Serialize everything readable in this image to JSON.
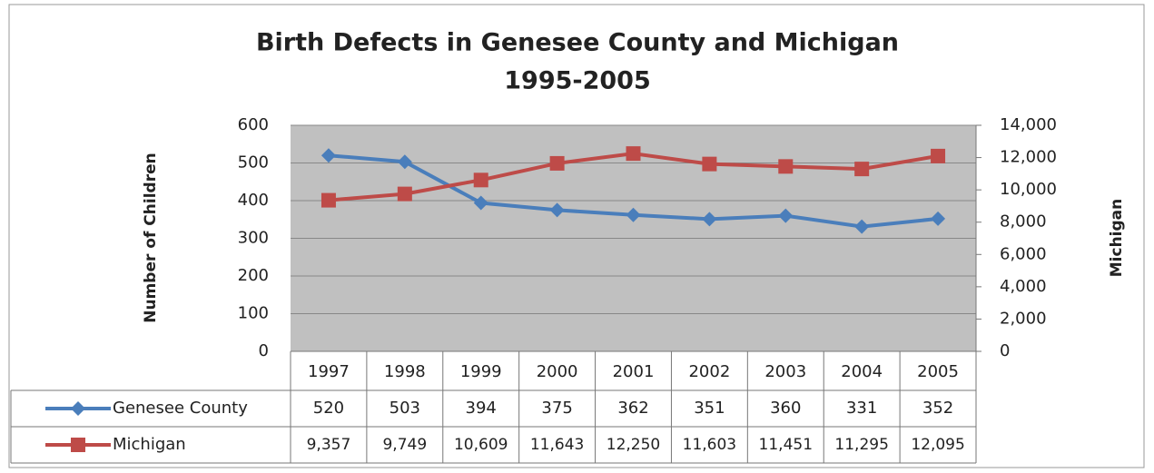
{
  "chart_data": {
    "type": "line",
    "title": "Birth Defects in Genesee County and Michigan",
    "subtitle": "1995-2005",
    "ylabel": "Number of Children",
    "y2label": "Michigan",
    "categories": [
      "1997",
      "1998",
      "1999",
      "2000",
      "2001",
      "2002",
      "2003",
      "2004",
      "2005"
    ],
    "series": [
      {
        "name": "Genesee County",
        "color": "#4a7ebb",
        "values": [
          520,
          503,
          394,
          375,
          362,
          351,
          360,
          331,
          352
        ]
      },
      {
        "name": "Michigan",
        "color": "#be4b48",
        "axis": "y2",
        "values": [
          9357,
          9749,
          10609,
          11643,
          12250,
          11603,
          11451,
          11295,
          12095
        ],
        "value_labels": [
          "9,357",
          "9,749",
          "10,609",
          "11,643",
          "12,250",
          "11,603",
          "11,451",
          "11,295",
          "12,095"
        ]
      }
    ],
    "ylim": [
      0,
      600
    ],
    "yticks": [
      0,
      100,
      200,
      300,
      400,
      500,
      600
    ],
    "y2lim": [
      0,
      14000
    ],
    "y2ticks": [
      0,
      {
        "value": 2000,
        "label": "2,000"
      },
      {
        "value": 4000,
        "label": "4,000"
      },
      {
        "value": 6000,
        "label": "6,000"
      },
      {
        "value": 8000,
        "label": "8,000"
      },
      {
        "value": 10000,
        "label": "10,000"
      },
      {
        "value": 12000,
        "label": "12,000"
      },
      {
        "value": 14000,
        "label": "14,000"
      }
    ],
    "grid": true
  }
}
